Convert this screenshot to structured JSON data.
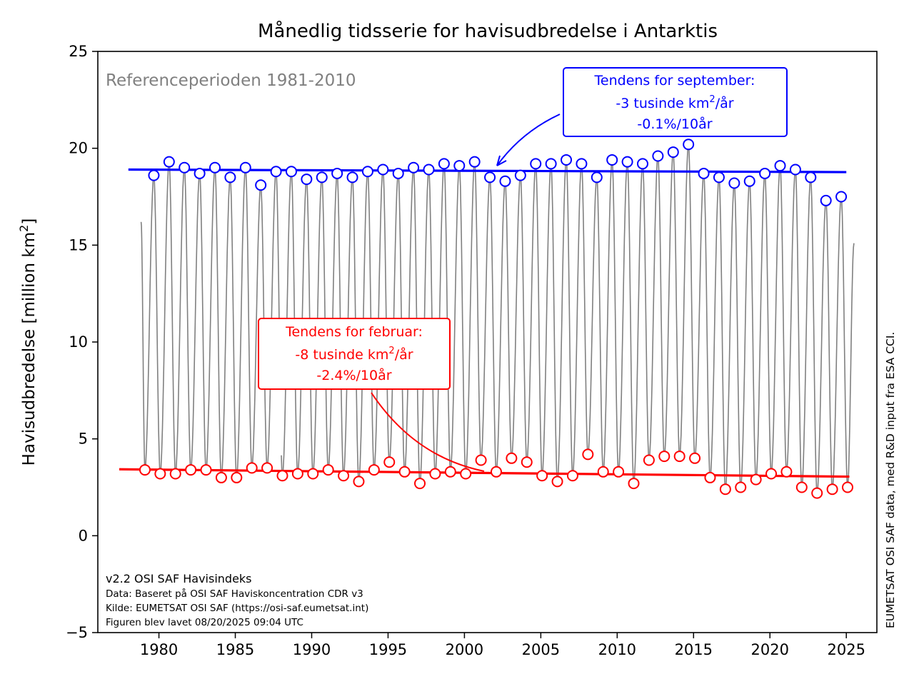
{
  "chart_data": {
    "type": "line",
    "title": "Månedlig tidsserie for havisudbredelse i Antarktis",
    "ylabel_main": "Havisudbredelse [million km",
    "ylabel_sup": "2",
    "ylabel_end": "]",
    "xlim": [
      1976,
      2027
    ],
    "ylim": [
      -5,
      25
    ],
    "x_ticks": [
      1980,
      1985,
      1990,
      1995,
      2000,
      2005,
      2010,
      2015,
      2020,
      2025
    ],
    "y_ticks": [
      -5,
      0,
      5,
      10,
      15,
      20,
      25
    ],
    "reference_period": "Referenceperioden 1981-2010",
    "side_note": "EUMETSAT OSI SAF data, med R&D input fra ESA CCI.",
    "footer": {
      "version": "v2.2 OSI SAF Havisindeks",
      "data": "Data: Baseret på OSI SAF Haviskoncentration CDR v3",
      "source": "Kilde: EUMETSAT OSI SAF (https://osi-saf.eumetsat.int)",
      "created": "Figuren blev lavet 08/20/2025 09:04 UTC"
    },
    "colors": {
      "monthly": "#808080",
      "september": "#0000ff",
      "february": "#ff0000",
      "reference": "#808080"
    },
    "monthly_series": {
      "name": "",
      "start": [
        1978,
        11
      ],
      "values_note": "monthly extent generated from annual February/September values with seasonal interpolation",
      "end": [
        2025,
        7
      ]
    },
    "september": {
      "years": [
        1979,
        1980,
        1981,
        1982,
        1983,
        1984,
        1985,
        1986,
        1987,
        1988,
        1989,
        1990,
        1991,
        1992,
        1993,
        1994,
        1995,
        1996,
        1997,
        1998,
        1999,
        2000,
        2001,
        2002,
        2003,
        2004,
        2005,
        2006,
        2007,
        2008,
        2009,
        2010,
        2011,
        2012,
        2013,
        2014,
        2015,
        2016,
        2017,
        2018,
        2019,
        2020,
        2021,
        2022,
        2023,
        2024
      ],
      "values": [
        18.6,
        19.3,
        19.0,
        18.7,
        19.0,
        18.5,
        19.0,
        18.1,
        18.8,
        18.8,
        18.4,
        18.5,
        18.7,
        18.5,
        18.8,
        18.9,
        18.7,
        19.0,
        18.9,
        19.2,
        19.1,
        19.3,
        18.5,
        18.3,
        18.6,
        19.2,
        19.2,
        19.4,
        19.2,
        18.5,
        19.4,
        19.3,
        19.2,
        19.6,
        19.8,
        20.2,
        18.7,
        18.5,
        18.2,
        18.3,
        18.7,
        19.1,
        18.9,
        18.5,
        17.3,
        17.5
      ],
      "trend": {
        "x": [
          1978.0,
          2025.0
        ],
        "y": [
          18.9,
          18.77
        ]
      },
      "annotation": {
        "line1": "Tendens for september:",
        "line2_main": "-3 tusinde km",
        "line2_sup": "2",
        "line2_end": "/år",
        "line3": "-0.1%/10år"
      }
    },
    "february": {
      "years": [
        1979,
        1980,
        1981,
        1982,
        1983,
        1984,
        1985,
        1986,
        1987,
        1988,
        1989,
        1990,
        1991,
        1992,
        1993,
        1994,
        1995,
        1996,
        1997,
        1998,
        1999,
        2000,
        2001,
        2002,
        2003,
        2004,
        2005,
        2006,
        2007,
        2008,
        2009,
        2010,
        2011,
        2012,
        2013,
        2014,
        2015,
        2016,
        2017,
        2018,
        2019,
        2020,
        2021,
        2022,
        2023,
        2024,
        2025
      ],
      "values": [
        3.4,
        3.2,
        3.2,
        3.4,
        3.4,
        3.0,
        3.0,
        3.5,
        3.5,
        3.1,
        3.2,
        3.2,
        3.4,
        3.1,
        2.8,
        3.4,
        3.8,
        3.3,
        2.7,
        3.2,
        3.3,
        3.2,
        3.9,
        3.3,
        4.0,
        3.8,
        3.1,
        2.8,
        3.1,
        4.2,
        3.3,
        3.3,
        2.7,
        3.9,
        4.1,
        4.1,
        4.0,
        3.0,
        2.4,
        2.5,
        2.9,
        3.2,
        3.3,
        2.5,
        2.2,
        2.4,
        2.5
      ],
      "trend": {
        "x": [
          1977.4,
          2025.2
        ],
        "y": [
          3.43,
          3.05
        ]
      },
      "annotation": {
        "line1": "Tendens for februar:",
        "line2_main": "-8 tusinde km",
        "line2_sup": "2",
        "line2_end": "/år",
        "line3": "-2.4%/10år"
      }
    }
  }
}
